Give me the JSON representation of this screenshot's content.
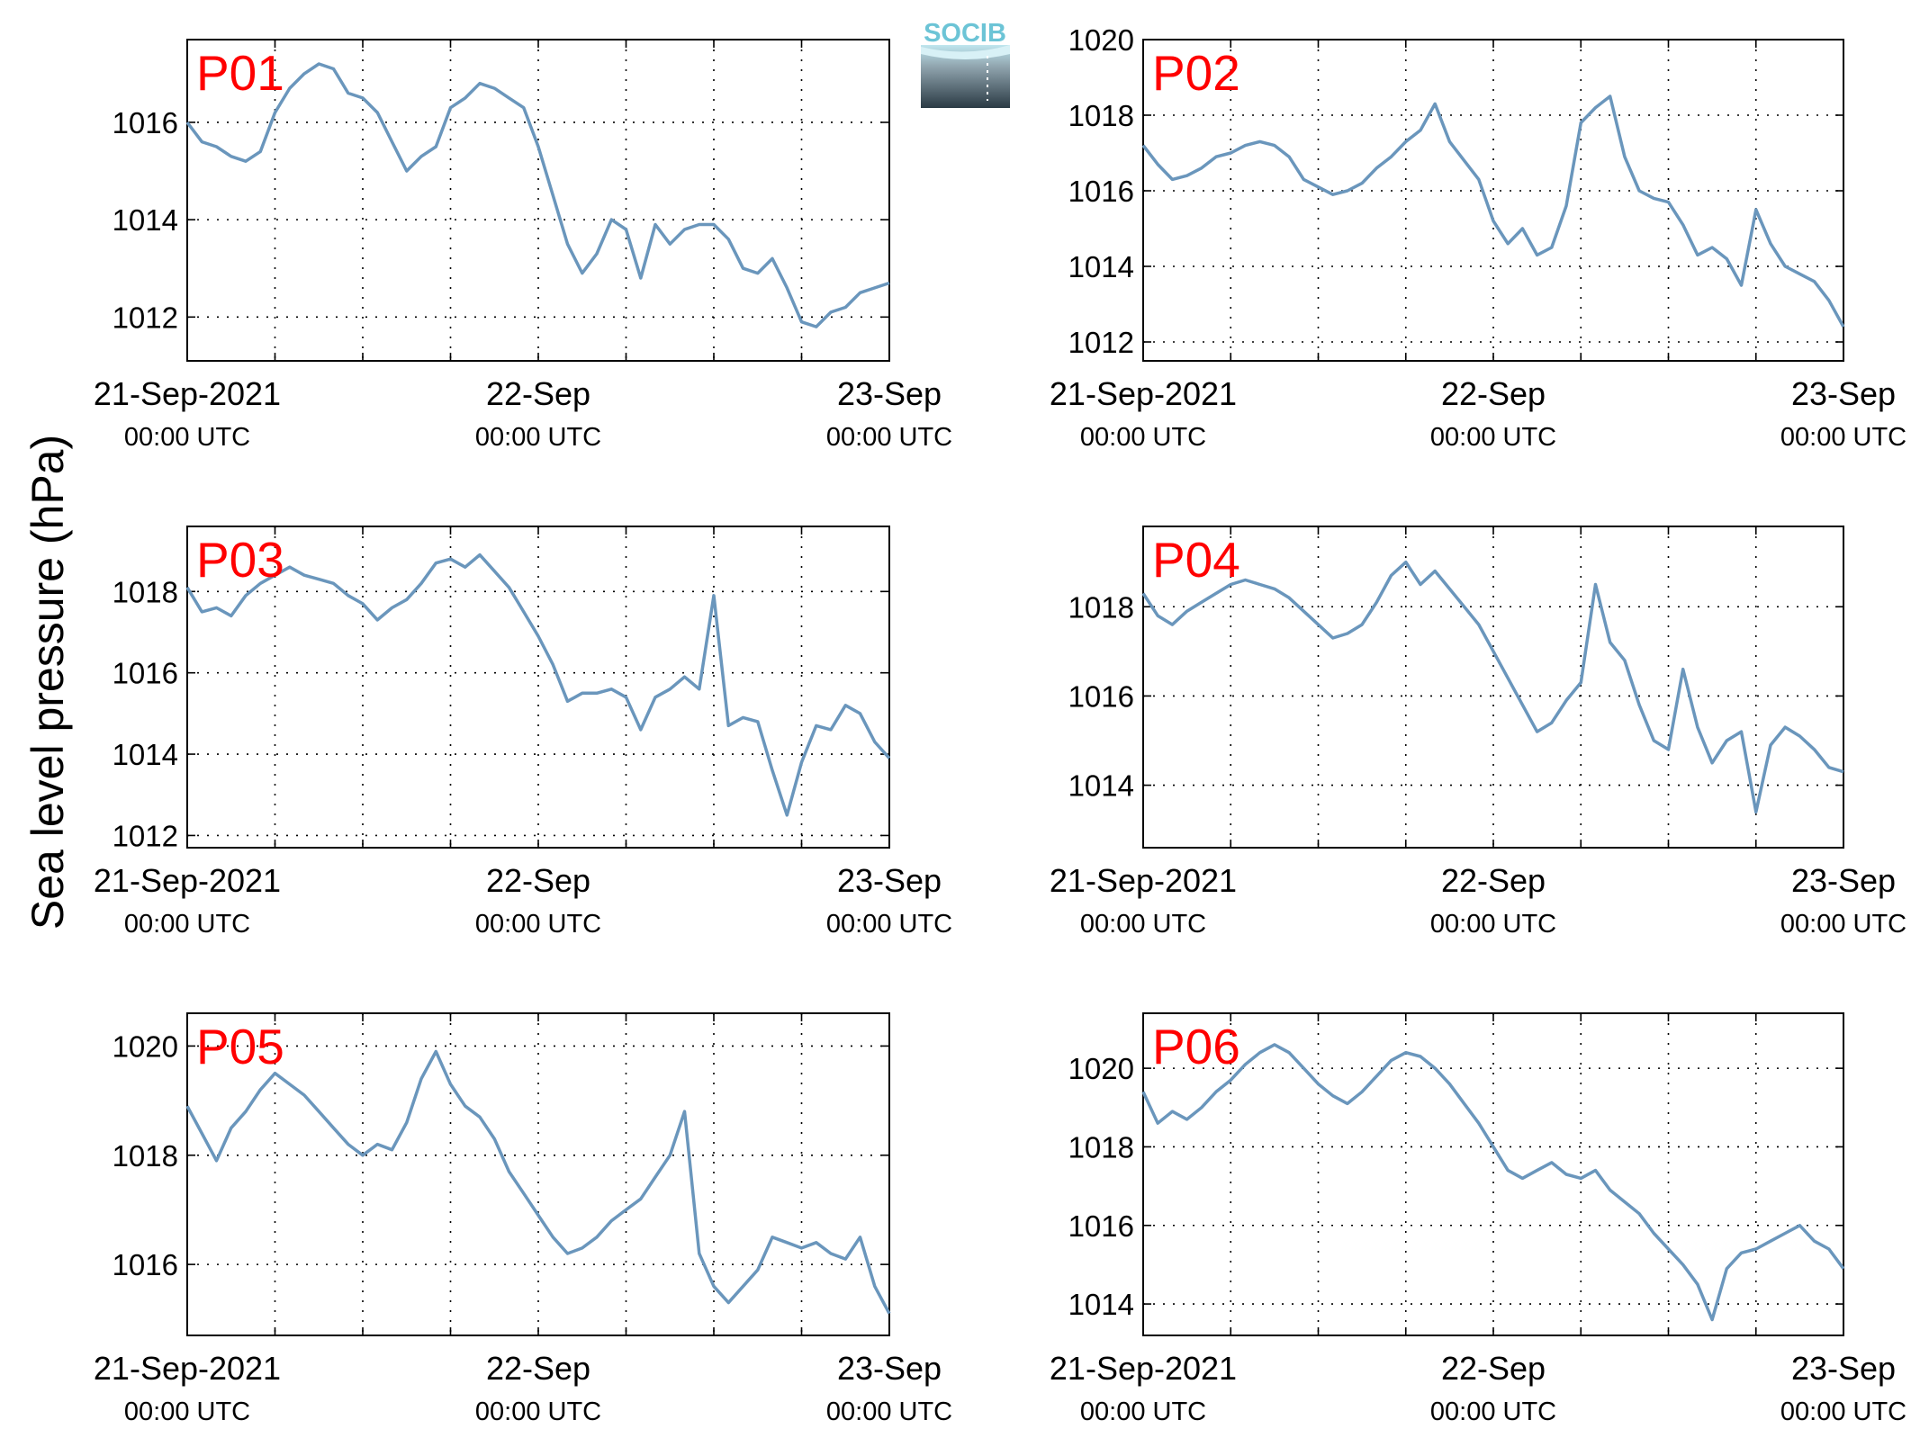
{
  "figure": {
    "ylabel": "Sea level pressure (hPa)",
    "logo_text": "SOCIB",
    "line_color": "#6a96bc",
    "label_color": "#ff0000"
  },
  "chart_data": [
    {
      "type": "line",
      "name": "P01",
      "x_ticks": [
        {
          "date": "21-Sep-2021",
          "time": "00:00 UTC"
        },
        {
          "date": "22-Sep",
          "time": "00:00 UTC"
        },
        {
          "date": "23-Sep",
          "time": "00:00 UTC"
        }
      ],
      "xlim": [
        "2021-09-21T00:00",
        "2021-09-23T00:00"
      ],
      "x_grid_step_hours": 6,
      "ylim": [
        1011.1,
        1017.7
      ],
      "y_ticks": [
        1012,
        1014,
        1016
      ],
      "grid": true,
      "series": [
        {
          "x_hours": [
            0,
            1,
            2,
            3,
            4,
            5,
            6,
            7,
            8,
            9,
            10,
            11,
            12,
            13,
            14,
            15,
            16,
            17,
            18,
            19,
            20,
            21,
            22,
            23,
            24,
            25,
            26,
            27,
            28,
            29,
            30,
            31,
            32,
            33,
            34,
            35,
            36,
            37,
            38,
            39,
            40,
            41,
            42,
            43,
            44,
            45,
            46,
            47,
            48
          ],
          "y": [
            1016.0,
            1015.6,
            1015.5,
            1015.3,
            1015.2,
            1015.4,
            1016.2,
            1016.7,
            1017.0,
            1017.2,
            1017.1,
            1016.6,
            1016.5,
            1016.2,
            1015.6,
            1015.0,
            1015.3,
            1015.5,
            1016.3,
            1016.5,
            1016.8,
            1016.7,
            1016.5,
            1016.3,
            1015.5,
            1014.5,
            1013.5,
            1012.9,
            1013.3,
            1014.0,
            1013.8,
            1012.8,
            1013.9,
            1013.5,
            1013.8,
            1013.9,
            1013.9,
            1013.6,
            1013.0,
            1012.9,
            1013.2,
            1012.6,
            1011.9,
            1011.8,
            1012.1,
            1012.2,
            1012.5,
            1012.6,
            1012.7
          ]
        }
      ]
    },
    {
      "type": "line",
      "name": "P02",
      "x_ticks": [
        {
          "date": "21-Sep-2021",
          "time": "00:00 UTC"
        },
        {
          "date": "22-Sep",
          "time": "00:00 UTC"
        },
        {
          "date": "23-Sep",
          "time": "00:00 UTC"
        }
      ],
      "xlim": [
        "2021-09-21T00:00",
        "2021-09-23T00:00"
      ],
      "x_grid_step_hours": 6,
      "ylim": [
        1011.5,
        1020.0
      ],
      "y_ticks": [
        1012,
        1014,
        1016,
        1018,
        1020
      ],
      "grid": true,
      "series": [
        {
          "x_hours": [
            0,
            1,
            2,
            3,
            4,
            5,
            6,
            7,
            8,
            9,
            10,
            11,
            12,
            13,
            14,
            15,
            16,
            17,
            18,
            19,
            20,
            21,
            22,
            23,
            24,
            25,
            26,
            27,
            28,
            29,
            30,
            31,
            32,
            33,
            34,
            35,
            36,
            37,
            38,
            39,
            40,
            41,
            42,
            43,
            44,
            45,
            46,
            47,
            48
          ],
          "y": [
            1017.2,
            1016.7,
            1016.3,
            1016.4,
            1016.6,
            1016.9,
            1017.0,
            1017.2,
            1017.3,
            1017.2,
            1016.9,
            1016.3,
            1016.1,
            1015.9,
            1016.0,
            1016.2,
            1016.6,
            1016.9,
            1017.3,
            1017.6,
            1018.3,
            1017.3,
            1016.8,
            1016.3,
            1015.2,
            1014.6,
            1015.0,
            1014.3,
            1014.5,
            1015.6,
            1017.8,
            1018.2,
            1018.5,
            1016.9,
            1016.0,
            1015.8,
            1015.7,
            1015.1,
            1014.3,
            1014.5,
            1014.2,
            1013.5,
            1015.5,
            1014.6,
            1014.0,
            1013.8,
            1013.6,
            1013.1,
            1012.4
          ]
        }
      ]
    },
    {
      "type": "line",
      "name": "P03",
      "x_ticks": [
        {
          "date": "21-Sep-2021",
          "time": "00:00 UTC"
        },
        {
          "date": "22-Sep",
          "time": "00:00 UTC"
        },
        {
          "date": "23-Sep",
          "time": "00:00 UTC"
        }
      ],
      "xlim": [
        "2021-09-21T00:00",
        "2021-09-23T00:00"
      ],
      "x_grid_step_hours": 6,
      "ylim": [
        1011.7,
        1019.6
      ],
      "y_ticks": [
        1012,
        1014,
        1016,
        1018
      ],
      "grid": true,
      "series": [
        {
          "x_hours": [
            0,
            1,
            2,
            3,
            4,
            5,
            6,
            7,
            8,
            9,
            10,
            11,
            12,
            13,
            14,
            15,
            16,
            17,
            18,
            19,
            20,
            21,
            22,
            23,
            24,
            25,
            26,
            27,
            28,
            29,
            30,
            31,
            32,
            33,
            34,
            35,
            36,
            37,
            38,
            39,
            40,
            41,
            42,
            43,
            44,
            45,
            46,
            47,
            48
          ],
          "y": [
            1018.1,
            1017.5,
            1017.6,
            1017.4,
            1017.9,
            1018.2,
            1018.4,
            1018.6,
            1018.4,
            1018.3,
            1018.2,
            1017.9,
            1017.7,
            1017.3,
            1017.6,
            1017.8,
            1018.2,
            1018.7,
            1018.8,
            1018.6,
            1018.9,
            1018.5,
            1018.1,
            1017.5,
            1016.9,
            1016.2,
            1015.3,
            1015.5,
            1015.5,
            1015.6,
            1015.4,
            1014.6,
            1015.4,
            1015.6,
            1015.9,
            1015.6,
            1017.9,
            1014.7,
            1014.9,
            1014.8,
            1013.6,
            1012.5,
            1013.8,
            1014.7,
            1014.6,
            1015.2,
            1015.0,
            1014.3,
            1013.9
          ]
        }
      ]
    },
    {
      "type": "line",
      "name": "P04",
      "x_ticks": [
        {
          "date": "21-Sep-2021",
          "time": "00:00 UTC"
        },
        {
          "date": "22-Sep",
          "time": "00:00 UTC"
        },
        {
          "date": "23-Sep",
          "time": "00:00 UTC"
        }
      ],
      "xlim": [
        "2021-09-21T00:00",
        "2021-09-23T00:00"
      ],
      "x_grid_step_hours": 6,
      "ylim": [
        1012.6,
        1019.8
      ],
      "y_ticks": [
        1014,
        1016,
        1018
      ],
      "grid": true,
      "series": [
        {
          "x_hours": [
            0,
            1,
            2,
            3,
            4,
            5,
            6,
            7,
            8,
            9,
            10,
            11,
            12,
            13,
            14,
            15,
            16,
            17,
            18,
            19,
            20,
            21,
            22,
            23,
            24,
            25,
            26,
            27,
            28,
            29,
            30,
            31,
            32,
            33,
            34,
            35,
            36,
            37,
            38,
            39,
            40,
            41,
            42,
            43,
            44,
            45,
            46,
            47,
            48
          ],
          "y": [
            1018.3,
            1017.8,
            1017.6,
            1017.9,
            1018.1,
            1018.3,
            1018.5,
            1018.6,
            1018.5,
            1018.4,
            1018.2,
            1017.9,
            1017.6,
            1017.3,
            1017.4,
            1017.6,
            1018.1,
            1018.7,
            1019.0,
            1018.5,
            1018.8,
            1018.4,
            1018.0,
            1017.6,
            1017.0,
            1016.4,
            1015.8,
            1015.2,
            1015.4,
            1015.9,
            1016.3,
            1018.5,
            1017.2,
            1016.8,
            1015.8,
            1015.0,
            1014.8,
            1016.6,
            1015.3,
            1014.5,
            1015.0,
            1015.2,
            1013.4,
            1014.9,
            1015.3,
            1015.1,
            1014.8,
            1014.4,
            1014.3
          ]
        }
      ]
    },
    {
      "type": "line",
      "name": "P05",
      "x_ticks": [
        {
          "date": "21-Sep-2021",
          "time": "00:00 UTC"
        },
        {
          "date": "22-Sep",
          "time": "00:00 UTC"
        },
        {
          "date": "23-Sep",
          "time": "00:00 UTC"
        }
      ],
      "xlim": [
        "2021-09-21T00:00",
        "2021-09-23T00:00"
      ],
      "x_grid_step_hours": 6,
      "ylim": [
        1014.7,
        1020.6
      ],
      "y_ticks": [
        1016,
        1018,
        1020
      ],
      "grid": true,
      "series": [
        {
          "x_hours": [
            0,
            1,
            2,
            3,
            4,
            5,
            6,
            7,
            8,
            9,
            10,
            11,
            12,
            13,
            14,
            15,
            16,
            17,
            18,
            19,
            20,
            21,
            22,
            23,
            24,
            25,
            26,
            27,
            28,
            29,
            30,
            31,
            32,
            33,
            34,
            35,
            36,
            37,
            38,
            39,
            40,
            41,
            42,
            43,
            44,
            45,
            46,
            47,
            48
          ],
          "y": [
            1018.9,
            1018.4,
            1017.9,
            1018.5,
            1018.8,
            1019.2,
            1019.5,
            1019.3,
            1019.1,
            1018.8,
            1018.5,
            1018.2,
            1018.0,
            1018.2,
            1018.1,
            1018.6,
            1019.4,
            1019.9,
            1019.3,
            1018.9,
            1018.7,
            1018.3,
            1017.7,
            1017.3,
            1016.9,
            1016.5,
            1016.2,
            1016.3,
            1016.5,
            1016.8,
            1017.0,
            1017.2,
            1017.6,
            1018.0,
            1018.8,
            1016.2,
            1015.6,
            1015.3,
            1015.6,
            1015.9,
            1016.5,
            1016.4,
            1016.3,
            1016.4,
            1016.2,
            1016.1,
            1016.5,
            1015.6,
            1015.1
          ]
        }
      ]
    },
    {
      "type": "line",
      "name": "P06",
      "x_ticks": [
        {
          "date": "21-Sep-2021",
          "time": "00:00 UTC"
        },
        {
          "date": "22-Sep",
          "time": "00:00 UTC"
        },
        {
          "date": "23-Sep",
          "time": "00:00 UTC"
        }
      ],
      "xlim": [
        "2021-09-21T00:00",
        "2021-09-23T00:00"
      ],
      "x_grid_step_hours": 6,
      "ylim": [
        1013.2,
        1021.4
      ],
      "y_ticks": [
        1014,
        1016,
        1018,
        1020
      ],
      "grid": true,
      "series": [
        {
          "x_hours": [
            0,
            1,
            2,
            3,
            4,
            5,
            6,
            7,
            8,
            9,
            10,
            11,
            12,
            13,
            14,
            15,
            16,
            17,
            18,
            19,
            20,
            21,
            22,
            23,
            24,
            25,
            26,
            27,
            28,
            29,
            30,
            31,
            32,
            33,
            34,
            35,
            36,
            37,
            38,
            39,
            40,
            41,
            42,
            43,
            44,
            45,
            46,
            47,
            48
          ],
          "y": [
            1019.4,
            1018.6,
            1018.9,
            1018.7,
            1019.0,
            1019.4,
            1019.7,
            1020.1,
            1020.4,
            1020.6,
            1020.4,
            1020.0,
            1019.6,
            1019.3,
            1019.1,
            1019.4,
            1019.8,
            1020.2,
            1020.4,
            1020.3,
            1020.0,
            1019.6,
            1019.1,
            1018.6,
            1018.0,
            1017.4,
            1017.2,
            1017.4,
            1017.6,
            1017.3,
            1017.2,
            1017.4,
            1016.9,
            1016.6,
            1016.3,
            1015.8,
            1015.4,
            1015.0,
            1014.5,
            1013.6,
            1014.9,
            1015.3,
            1015.4,
            1015.6,
            1015.8,
            1016.0,
            1015.6,
            1015.4,
            1014.9
          ]
        }
      ]
    }
  ]
}
